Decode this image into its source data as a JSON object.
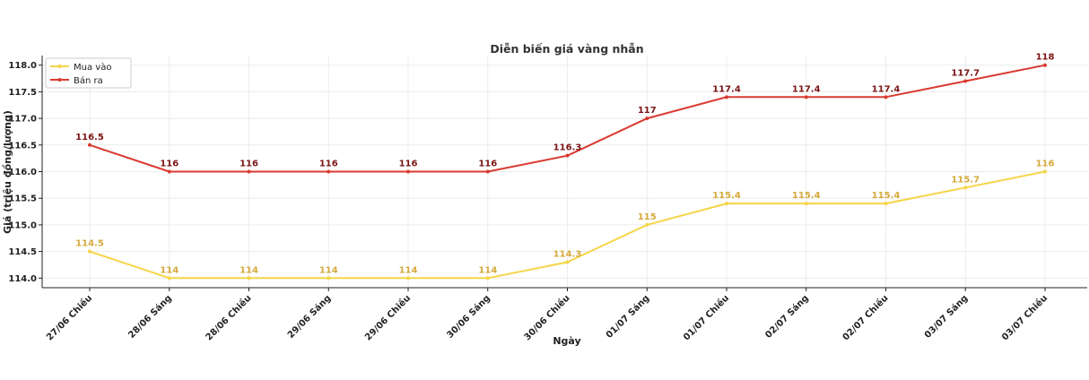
{
  "chart_data": {
    "type": "line",
    "title": "Diễn biến giá vàng nhẫn",
    "xlabel": "Ngày",
    "ylabel": "Giá (triệu đồng/lượng)",
    "categories": [
      "27/06 Chiều",
      "28/06 Sáng",
      "28/06 Chiều",
      "29/06 Sáng",
      "29/06 Chiều",
      "30/06 Sáng",
      "30/06 Chiều",
      "01/07 Sáng",
      "01/07 Chiều",
      "02/07 Sáng",
      "02/07 Chiều",
      "03/07 Sáng",
      "03/07 Chiều"
    ],
    "ylim": [
      113.82,
      118.18
    ],
    "yticks": [
      "114.0",
      "114.5",
      "115.0",
      "115.5",
      "116.0",
      "116.5",
      "117.0",
      "117.5",
      "118.0"
    ],
    "grid": true,
    "legend": "top-left",
    "series": [
      {
        "name": "Mua vào",
        "color": "#f5d547",
        "label_color": "#d4a93a",
        "values": [
          114.5,
          114,
          114,
          114,
          114,
          114,
          114.3,
          115,
          115.4,
          115.4,
          115.4,
          115.7,
          116
        ],
        "labels": [
          "114.5",
          "114",
          "114",
          "114",
          "114",
          "114",
          "114.3",
          "115",
          "115.4",
          "115.4",
          "115.4",
          "115.7",
          "116"
        ]
      },
      {
        "name": "Bán ra",
        "color": "#d93a30",
        "label_color": "#7a1414",
        "values": [
          116.5,
          116,
          116,
          116,
          116,
          116,
          116.3,
          117,
          117.4,
          117.4,
          117.4,
          117.7,
          118
        ],
        "labels": [
          "116.5",
          "116",
          "116",
          "116",
          "116",
          "116",
          "116.3",
          "117",
          "117.4",
          "117.4",
          "117.4",
          "117.7",
          "118"
        ]
      }
    ]
  }
}
